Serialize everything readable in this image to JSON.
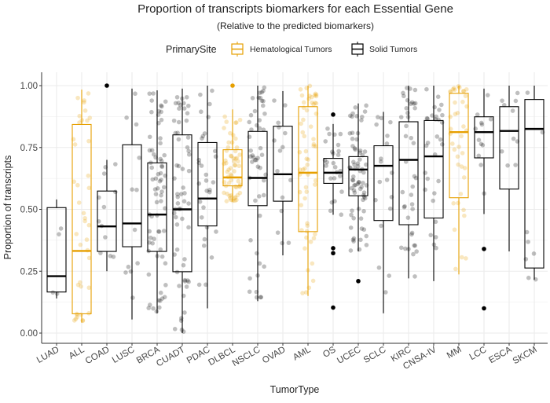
{
  "chart_data": {
    "type": "boxplot",
    "title": "Proportion of transcripts biomarkers for each Essential Gene",
    "subtitle": "(Relative to the predicted biomarkers)",
    "xlabel": "TumorType",
    "ylabel": "Proportion of transcripts",
    "ylim": [
      0,
      1
    ],
    "yticks": [
      0,
      0.25,
      0.5,
      0.75,
      1.0
    ],
    "ytick_labels": [
      "0.00",
      "0.25",
      "0.50",
      "0.75",
      "1.00"
    ],
    "grid": true,
    "legend": {
      "title": "PrimarySite",
      "placement": "top",
      "entries": [
        {
          "label": "Hematological Tumors",
          "color": "#E69F00"
        },
        {
          "label": "Solid Tumors",
          "color": "#000000"
        }
      ]
    },
    "groups": [
      {
        "name": "LUAD",
        "site": "Solid Tumors",
        "whisker_low": 0.14,
        "q1": 0.166,
        "median": 0.23,
        "q3": 0.507,
        "whisker_high": 0.54,
        "outliers": [],
        "n": 4
      },
      {
        "name": "ALL",
        "site": "Hematological Tumors",
        "whisker_low": 0.042,
        "q1": 0.078,
        "median": 0.332,
        "q3": 0.843,
        "whisker_high": 0.984,
        "outliers": [],
        "n": 40
      },
      {
        "name": "COAD",
        "site": "Solid Tumors",
        "whisker_low": 0.25,
        "q1": 0.33,
        "median": 0.431,
        "q3": 0.574,
        "whisker_high": 0.7,
        "outliers": [
          1.0
        ],
        "n": 12
      },
      {
        "name": "LUSC",
        "site": "Solid Tumors",
        "whisker_low": 0.055,
        "q1": 0.349,
        "median": 0.443,
        "q3": 0.761,
        "whisker_high": 0.988,
        "outliers": [],
        "n": 12
      },
      {
        "name": "BRCA",
        "site": "Solid Tumors",
        "whisker_low": 0.08,
        "q1": 0.33,
        "median": 0.479,
        "q3": 0.688,
        "whisker_high": 0.981,
        "outliers": [],
        "n": 70
      },
      {
        "name": "CUADT",
        "site": "Solid Tumors",
        "whisker_low": 0.0,
        "q1": 0.248,
        "median": 0.5,
        "q3": 0.801,
        "whisker_high": 0.988,
        "outliers": [],
        "n": 60
      },
      {
        "name": "PDAC",
        "site": "Solid Tumors",
        "whisker_low": 0.1,
        "q1": 0.433,
        "median": 0.544,
        "q3": 0.77,
        "whisker_high": 1.0,
        "outliers": [],
        "n": 30
      },
      {
        "name": "DLBCL",
        "site": "Hematological Tumors",
        "whisker_low": 0.531,
        "q1": 0.595,
        "median": 0.629,
        "q3": 0.741,
        "whisker_high": 0.904,
        "outliers": [
          1.0
        ],
        "n": 60
      },
      {
        "name": "NSCLC",
        "site": "Solid Tumors",
        "whisker_low": 0.129,
        "q1": 0.515,
        "median": 0.627,
        "q3": 0.815,
        "whisker_high": 1.0,
        "outliers": [],
        "n": 50
      },
      {
        "name": "OVAD",
        "site": "Solid Tumors",
        "whisker_low": 0.314,
        "q1": 0.533,
        "median": 0.642,
        "q3": 0.836,
        "whisker_high": 0.978,
        "outliers": [],
        "n": 15
      },
      {
        "name": "AML",
        "site": "Hematological Tumors",
        "whisker_low": 0.15,
        "q1": 0.41,
        "median": 0.648,
        "q3": 0.915,
        "whisker_high": 1.0,
        "outliers": [],
        "n": 60
      },
      {
        "name": "OS",
        "site": "Solid Tumors",
        "whisker_low": 0.478,
        "q1": 0.605,
        "median": 0.648,
        "q3": 0.706,
        "whisker_high": 0.845,
        "outliers": [
          0.883,
          0.343,
          0.323,
          0.103
        ],
        "n": 25
      },
      {
        "name": "UCEC",
        "site": "Solid Tumors",
        "whisker_low": 0.33,
        "q1": 0.555,
        "median": 0.661,
        "q3": 0.713,
        "whisker_high": 0.928,
        "outliers": [
          0.21
        ],
        "n": 70
      },
      {
        "name": "SCLC",
        "site": "Solid Tumors",
        "whisker_low": 0.08,
        "q1": 0.455,
        "median": 0.676,
        "q3": 0.757,
        "whisker_high": 0.894,
        "outliers": [],
        "n": 18
      },
      {
        "name": "KIRC",
        "site": "Solid Tumors",
        "whisker_low": 0.221,
        "q1": 0.438,
        "median": 0.7,
        "q3": 0.854,
        "whisker_high": 1.0,
        "outliers": [],
        "n": 40
      },
      {
        "name": "CNSA-IV",
        "site": "Solid Tumors",
        "whisker_low": 0.21,
        "q1": 0.465,
        "median": 0.714,
        "q3": 0.859,
        "whisker_high": 1.0,
        "outliers": [],
        "n": 30
      },
      {
        "name": "MM",
        "site": "Hematological Tumors",
        "whisker_low": 0.237,
        "q1": 0.547,
        "median": 0.812,
        "q3": 0.969,
        "whisker_high": 1.0,
        "outliers": [],
        "n": 40
      },
      {
        "name": "LCC",
        "site": "Solid Tumors",
        "whisker_low": 0.481,
        "q1": 0.708,
        "median": 0.812,
        "q3": 0.874,
        "whisker_high": 0.988,
        "outliers": [
          0.34,
          0.1
        ],
        "n": 12
      },
      {
        "name": "ESCA",
        "site": "Solid Tumors",
        "whisker_low": 0.33,
        "q1": 0.582,
        "median": 0.817,
        "q3": 0.915,
        "whisker_high": 1.0,
        "outliers": [],
        "n": 10
      },
      {
        "name": "SKCM",
        "site": "Solid Tumors",
        "whisker_low": 0.216,
        "q1": 0.263,
        "median": 0.825,
        "q3": 0.944,
        "whisker_high": 1.0,
        "outliers": [],
        "n": 8
      }
    ]
  }
}
